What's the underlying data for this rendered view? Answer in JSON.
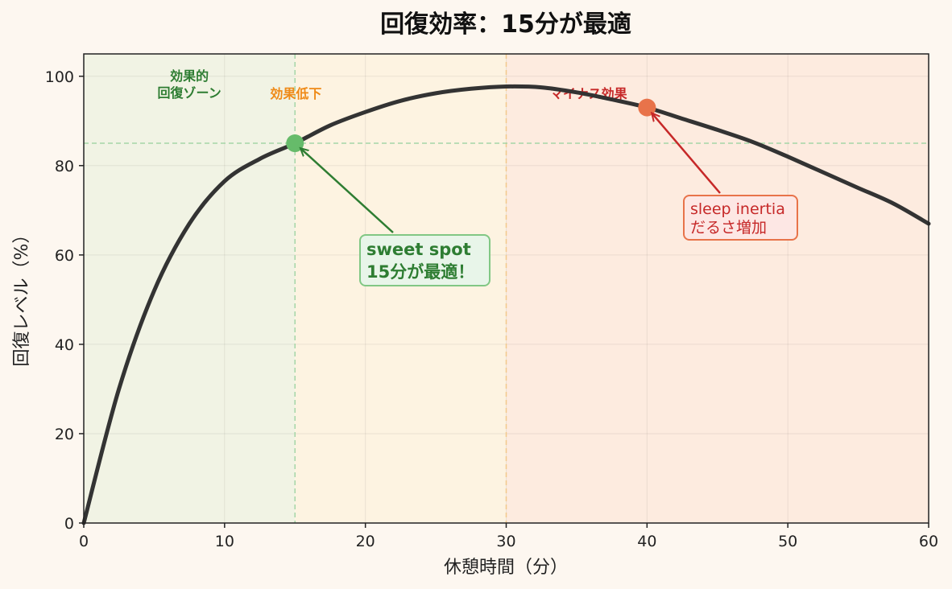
{
  "chart_data": {
    "type": "line",
    "title": "回復効率：15分が最適",
    "xlabel": "休憩時間（分）",
    "ylabel": "回復レベル（%）",
    "xlim": [
      0,
      60
    ],
    "ylim": [
      0,
      105
    ],
    "xticks": [
      0,
      10,
      20,
      30,
      40,
      50,
      60
    ],
    "yticks": [
      0,
      20,
      40,
      60,
      80,
      100
    ],
    "grid": true,
    "series": [
      {
        "color": "#333333",
        "x": [
          0,
          2.5,
          5,
          7.5,
          10,
          12.5,
          15,
          17.5,
          20,
          22.5,
          25,
          27.5,
          30,
          32.5,
          35,
          37.5,
          40,
          42.5,
          45,
          47.5,
          50,
          52.5,
          55,
          57.5,
          60
        ],
        "y": [
          0,
          30,
          52,
          67,
          76.5,
          81.5,
          85,
          89,
          92,
          94.5,
          96.2,
          97.2,
          97.7,
          97.5,
          96.4,
          94.8,
          93,
          90.5,
          88,
          85.3,
          82,
          78.5,
          75,
          71.5,
          67
        ]
      }
    ],
    "zones": [
      {
        "from": 0,
        "to": 15,
        "color": "#f1f3e4",
        "label": "効果的\n回復ゾーン",
        "label_color": "#2e7d32"
      },
      {
        "from": 15,
        "to": 30,
        "color": "#fdf3e1",
        "label": "効果低下",
        "label_color": "#ef8a17"
      },
      {
        "from": 30,
        "to": 60,
        "color": "#fdebdf",
        "label": "マイナス効果",
        "label_color": "#c62828"
      }
    ],
    "reference_lines": {
      "vertical": [
        {
          "x": 15,
          "color": "#a5d6a7"
        },
        {
          "x": 30,
          "color": "#f3c98b"
        }
      ],
      "horizontal": [
        {
          "y": 85,
          "color": "#a5d6a7"
        }
      ]
    },
    "markers": [
      {
        "x": 15,
        "y": 85,
        "color": "#66bb6a"
      },
      {
        "x": 40,
        "y": 93,
        "color": "#e8734a"
      }
    ],
    "annotations": [
      {
        "target_x": 15,
        "target_y": 85,
        "lines": [
          "sweet spot",
          "15分が最適！"
        ],
        "text_color": "#2e7d32",
        "box_fill": "#e8f5e9",
        "box_border": "#81c784",
        "arrow_color": "#2e7d32"
      },
      {
        "target_x": 40,
        "target_y": 93,
        "lines": [
          "sleep inertia",
          "だるさ増加"
        ],
        "text_color": "#c62828",
        "box_fill": "#fde7e4",
        "box_border": "#e8734a",
        "arrow_color": "#c62828"
      }
    ]
  }
}
